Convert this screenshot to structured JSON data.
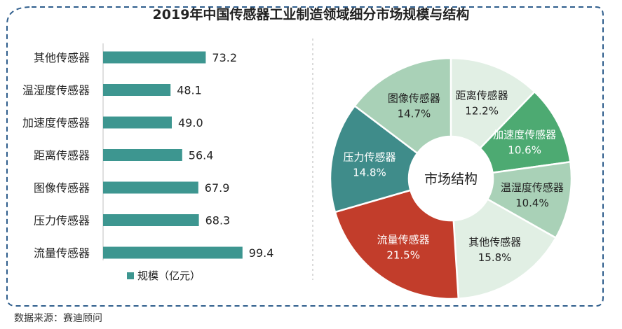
{
  "title": "2019年中国传感器工业制造领域细分市场规模与结构",
  "source": "数据来源：赛迪顾问",
  "colors": {
    "bar": "#3d9690",
    "frame": "#2e5d8c"
  },
  "chart_data": [
    {
      "type": "bar",
      "orientation": "horizontal",
      "categories": [
        "其他传感器",
        "温湿度传感器",
        "加速度传感器",
        "距离传感器",
        "图像传感器",
        "压力传感器",
        "流量传感器"
      ],
      "series": [
        {
          "name": "规模（亿元）",
          "values": [
            73.2,
            48.1,
            49.0,
            56.4,
            67.9,
            68.3,
            99.4
          ]
        }
      ],
      "legend": "bottom"
    },
    {
      "type": "pie",
      "style": "donut",
      "center_label": "市场结构",
      "slices": [
        {
          "label": "距离传感器",
          "value": 12.2,
          "display": "12.2%",
          "color": "#e1efe4"
        },
        {
          "label": "加速度传感器",
          "value": 10.6,
          "display": "10.6%",
          "color": "#4daa72"
        },
        {
          "label": "温湿度传感器",
          "value": 10.4,
          "display": "10.4%",
          "color": "#a9d1b7"
        },
        {
          "label": "其他传感器",
          "value": 15.8,
          "display": "15.8%",
          "color": "#e1efe4"
        },
        {
          "label": "流量传感器",
          "value": 21.5,
          "display": "21.5%",
          "color": "#c23d2b"
        },
        {
          "label": "压力传感器",
          "value": 14.8,
          "display": "14.8%",
          "color": "#3f8c8a"
        },
        {
          "label": "图像传感器",
          "value": 14.7,
          "display": "14.7%",
          "color": "#a9d1b7"
        }
      ]
    }
  ]
}
